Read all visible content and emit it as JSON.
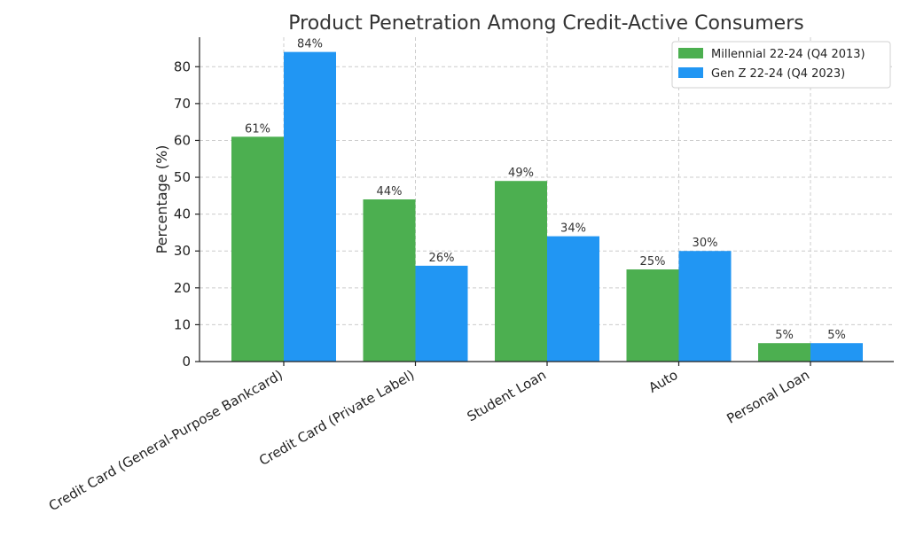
{
  "chart_data": {
    "type": "bar",
    "title": "Product Penetration Among Credit-Active Consumers",
    "xlabel": "",
    "ylabel": "Percentage (%)",
    "ylim": [
      0,
      88
    ],
    "yticks": [
      0,
      10,
      20,
      30,
      40,
      50,
      60,
      70,
      80
    ],
    "grid": true,
    "legend_position": "top-right",
    "categories": [
      "Credit Card (General-Purpose Bankcard)",
      "Credit Card (Private Label)",
      "Student Loan",
      "Auto",
      "Personal Loan"
    ],
    "series": [
      {
        "name": "Millennial 22-24 (Q4 2013)",
        "color": "#4caf50",
        "values": [
          61,
          44,
          49,
          25,
          5
        ]
      },
      {
        "name": "Gen Z 22-24 (Q4 2023)",
        "color": "#2196f3",
        "values": [
          84,
          26,
          34,
          30,
          5
        ]
      }
    ],
    "value_suffix": "%"
  }
}
